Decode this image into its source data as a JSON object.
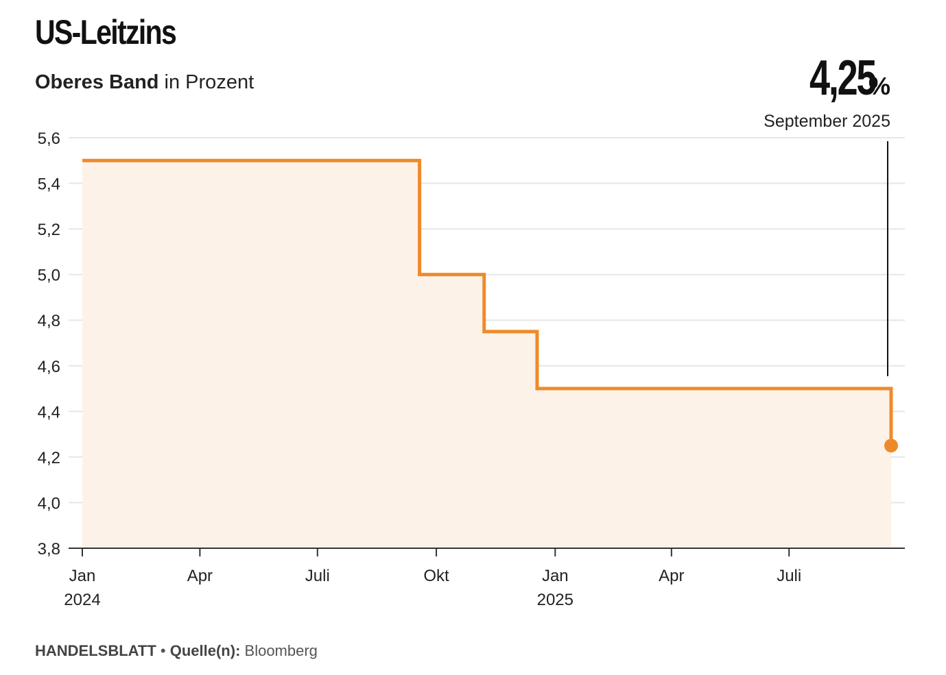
{
  "header": {
    "title": "US-Leitzins",
    "subtitle_bold": "Oberes Band",
    "subtitle_rest": " in Prozent"
  },
  "callout": {
    "value": "4,25",
    "unit": "%",
    "date": "September 2025"
  },
  "footer": {
    "brand": "HANDELSBLATT",
    "separator": " • ",
    "source_label": "Quelle(n):",
    "source": " Bloomberg"
  },
  "colors": {
    "line": "#ef8a2a",
    "area": "#fdf2e8",
    "grid": "#e6e6e6",
    "axis": "#333333",
    "callout_line": "#111111"
  },
  "chart_data": {
    "type": "line",
    "style": "step",
    "title": "US-Leitzins",
    "subtitle": "Oberes Band in Prozent",
    "ylim": [
      3.8,
      5.6
    ],
    "yticks": [
      3.8,
      4.0,
      4.2,
      4.4,
      4.6,
      4.8,
      5.0,
      5.2,
      5.4,
      5.6
    ],
    "ytick_labels": [
      "3,8",
      "4,0",
      "4,2",
      "4,4",
      "4,6",
      "4,8",
      "5,0",
      "5,2",
      "5,4",
      "5,6"
    ],
    "xlim": [
      "2024-01-01",
      "2025-09-18"
    ],
    "xticks": [
      {
        "date": "2024-01-01",
        "label": "Jan",
        "year": "2024"
      },
      {
        "date": "2024-04-01",
        "label": "Apr",
        "year": ""
      },
      {
        "date": "2024-07-01",
        "label": "Juli",
        "year": ""
      },
      {
        "date": "2024-10-01",
        "label": "Okt",
        "year": ""
      },
      {
        "date": "2025-01-01",
        "label": "Jan",
        "year": "2025"
      },
      {
        "date": "2025-04-01",
        "label": "Apr",
        "year": ""
      },
      {
        "date": "2025-07-01",
        "label": "Juli",
        "year": ""
      }
    ],
    "grid": true,
    "area_fill": true,
    "series": [
      {
        "x": [
          "2024-01-01",
          "2024-09-18",
          "2024-11-07",
          "2024-12-18",
          "2025-09-17",
          "2025-09-18"
        ],
        "values": [
          5.5,
          5.0,
          4.75,
          4.5,
          4.5,
          4.25
        ]
      }
    ],
    "annotation": {
      "date": "2025-09-18",
      "value": 4.25,
      "label": "4,25 % September 2025"
    }
  }
}
